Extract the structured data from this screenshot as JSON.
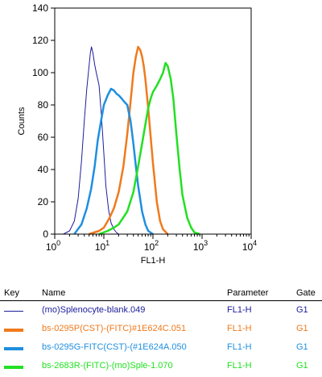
{
  "chart_data": {
    "type": "line",
    "xlabel": "FL1-H",
    "ylabel": "Counts",
    "xscale": "log",
    "xlim": [
      1,
      10000
    ],
    "ylim": [
      0,
      140
    ],
    "y_ticks": [
      "0",
      "20",
      "40",
      "60",
      "80",
      "100",
      "120",
      "140"
    ],
    "x_ticks": [
      {
        "base": "10",
        "exp": "0"
      },
      {
        "base": "10",
        "exp": "1"
      },
      {
        "base": "10",
        "exp": "2"
      },
      {
        "base": "10",
        "exp": "3"
      },
      {
        "base": "10",
        "exp": "4"
      }
    ],
    "series": [
      {
        "name": "(mo)Splenocyte-blank.049",
        "color": "#1c1c9c",
        "x": [
          1.5,
          2,
          2.5,
          3,
          3.5,
          4,
          4.5,
          5,
          5.3,
          5.6,
          6,
          6.5,
          7,
          7.5,
          8,
          9,
          10,
          11,
          12.5,
          14,
          16,
          18,
          20,
          25
        ],
        "y": [
          0,
          2,
          8,
          22,
          45,
          70,
          90,
          104,
          112,
          116,
          112,
          105,
          100,
          96,
          92,
          72,
          50,
          30,
          15,
          7,
          3,
          1,
          0,
          0
        ]
      },
      {
        "name": "bs-0295P(CST)-(FITC)#1E624C.051",
        "color": "#f07a1c",
        "x": [
          5,
          8,
          10,
          13,
          16,
          20,
          25,
          30,
          35,
          40,
          45,
          50,
          55,
          60,
          65,
          70,
          80,
          90,
          100,
          120,
          140,
          160,
          200
        ],
        "y": [
          0,
          2,
          4,
          10,
          16,
          26,
          42,
          62,
          82,
          100,
          110,
          116,
          114,
          110,
          104,
          96,
          78,
          60,
          44,
          20,
          8,
          3,
          0
        ]
      },
      {
        "name": "bs-0295G-FITC(CST)-(#1E624A.050",
        "color": "#1f8fe0",
        "x": [
          2.5,
          3.5,
          4.5,
          5.5,
          6.5,
          7.5,
          9,
          10,
          12,
          14,
          16,
          18,
          20,
          23,
          26,
          30,
          35,
          40,
          45,
          50,
          60,
          70,
          80,
          100
        ],
        "y": [
          0,
          6,
          16,
          28,
          42,
          58,
          72,
          80,
          86,
          90,
          89,
          87,
          86,
          84,
          82,
          80,
          70,
          56,
          42,
          30,
          14,
          6,
          2,
          0
        ]
      },
      {
        "name": "bs-2683R-(FITC)-(mo)Sple-1.070",
        "color": "#22e022",
        "x": [
          8,
          12,
          16,
          20,
          30,
          40,
          50,
          60,
          70,
          80,
          90,
          100,
          120,
          140,
          160,
          180,
          200,
          230,
          260,
          300,
          350,
          400,
          500,
          600,
          700,
          900
        ],
        "y": [
          0,
          2,
          4,
          6,
          14,
          26,
          42,
          56,
          68,
          78,
          84,
          88,
          92,
          96,
          100,
          106,
          104,
          96,
          84,
          62,
          40,
          24,
          10,
          4,
          1,
          0
        ]
      }
    ]
  },
  "key_table": {
    "headers": {
      "key": "Key",
      "name": "Name",
      "parameter": "Parameter",
      "gate": "Gate"
    },
    "rows": [
      {
        "name": "(mo)Splenocyte-blank.049",
        "parameter": "FL1-H",
        "gate": "G1",
        "color": "#1c1c9c"
      },
      {
        "name": "bs-0295P(CST)-(FITC)#1E624C.051",
        "parameter": "FL1-H",
        "gate": "G1",
        "color": "#f07a1c"
      },
      {
        "name": "bs-0295G-FITC(CST)-(#1E624A.050",
        "parameter": "FL1-H",
        "gate": "G1",
        "color": "#1f8fe0"
      },
      {
        "name": "bs-2683R-(FITC)-(mo)Sple-1.070",
        "parameter": "FL1-H",
        "gate": "G1",
        "color": "#22e022"
      }
    ]
  }
}
